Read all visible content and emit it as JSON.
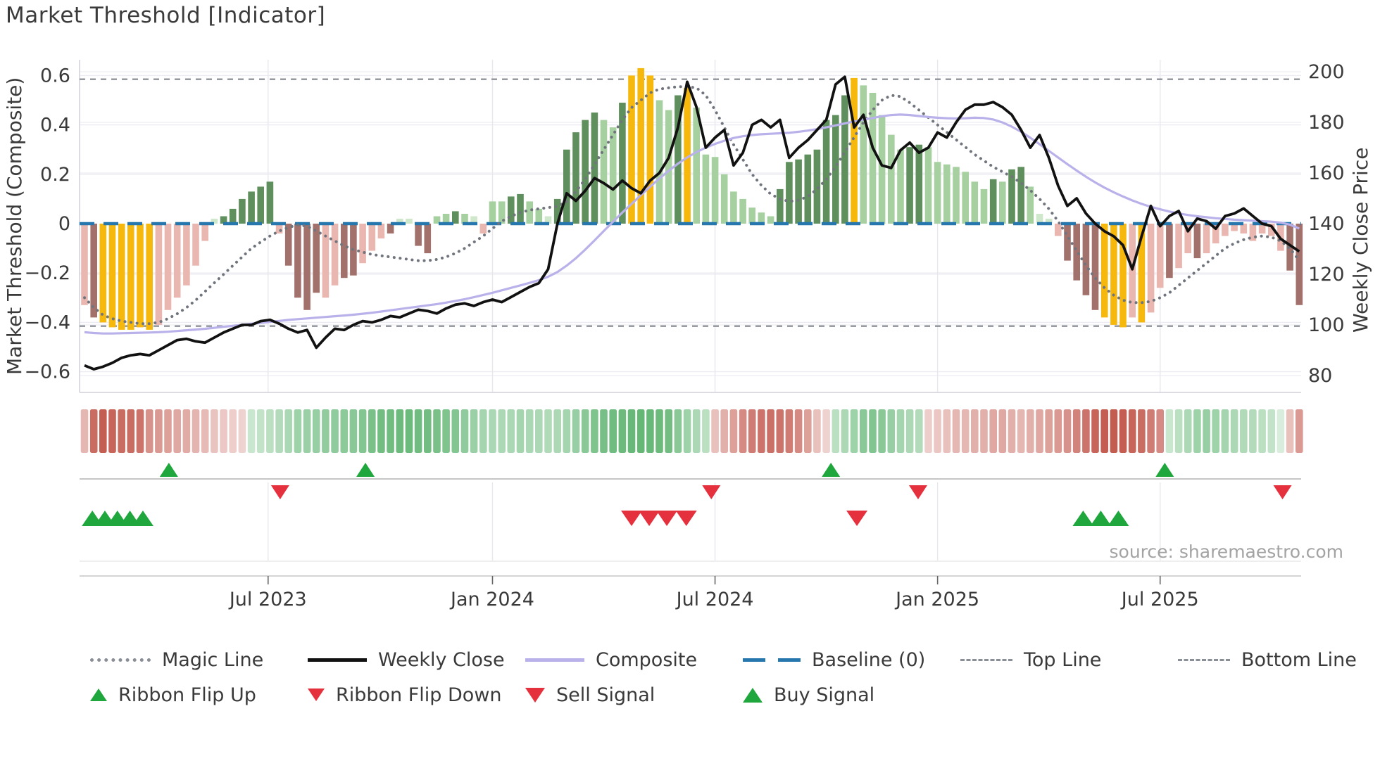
{
  "title": "Market Threshold [Indicator]",
  "source": "source: sharemaestro.com",
  "colors": {
    "bar_palette": {
      "P": "#e9b7b0",
      "D": "#a3716c",
      "Y": "#f6b80d",
      "G": "#5f8f5c",
      "L": "#a6d09f",
      "LL": "#cfe7ca"
    },
    "weekly_close": "#111111",
    "composite": "#b9b1ea",
    "magic_line": "#70747c",
    "baseline": "#2577ad",
    "top_bottom_line": "#8f939a",
    "grid": "#ebebf1",
    "ribbon_green": "#52ae65",
    "ribbon_red": "#bd4a3e",
    "signal_green": "#1fa63c",
    "signal_red": "#e5303e",
    "text": "#3a3a3a",
    "muted_text": "#a3a3a3"
  },
  "axes": {
    "left": {
      "title": "Market Threshold (Composite)",
      "ticks": [
        {
          "label": "0.6",
          "v": 0.6
        },
        {
          "label": "0.4",
          "v": 0.4
        },
        {
          "label": "0.2",
          "v": 0.2
        },
        {
          "label": "0",
          "v": 0
        },
        {
          "label": "−0.2",
          "v": -0.2
        },
        {
          "label": "−0.4",
          "v": -0.4
        },
        {
          "label": "−0.6",
          "v": -0.6
        }
      ]
    },
    "right": {
      "title": "Weekly Close Price",
      "ticks": [
        {
          "label": "200",
          "v": 200
        },
        {
          "label": "180",
          "v": 180
        },
        {
          "label": "160",
          "v": 160
        },
        {
          "label": "140",
          "v": 140
        },
        {
          "label": "120",
          "v": 120
        },
        {
          "label": "100",
          "v": 100
        },
        {
          "label": "80",
          "v": 80
        }
      ]
    },
    "x": {
      "ticks": [
        {
          "label": "Jul 2023",
          "idx": 19.8
        },
        {
          "label": "Jan 2024",
          "idx": 44.0
        },
        {
          "label": "Jul 2024",
          "idx": 68.0
        },
        {
          "label": "Jan 2025",
          "idx": 92.0
        },
        {
          "label": "Jul 2025",
          "idx": 116.0
        }
      ]
    }
  },
  "chart_data": {
    "type": "bar",
    "title": "Market Threshold [Indicator]",
    "xlabel": "",
    "ylabel_left": "Market Threshold (Composite)",
    "ylabel_right": "Weekly Close Price",
    "ylim_left": [
      -0.66,
      0.67
    ],
    "ylim_right": [
      73,
      205
    ],
    "x_tick_labels": [
      "Jul 2023",
      "Jan 2024",
      "Jul 2024",
      "Jan 2025",
      "Jul 2025"
    ],
    "n_weeks": 132,
    "bars": {
      "name": "Market Threshold (weekly)",
      "values": [
        -0.33,
        -0.38,
        -0.4,
        -0.42,
        -0.43,
        -0.43,
        -0.42,
        -0.43,
        -0.41,
        -0.35,
        -0.3,
        -0.25,
        -0.17,
        -0.07,
        0.02,
        0.03,
        0.06,
        0.1,
        0.13,
        0.15,
        0.17,
        -0.04,
        -0.17,
        -0.3,
        -0.35,
        -0.28,
        -0.3,
        -0.25,
        -0.22,
        -0.21,
        -0.16,
        -0.11,
        -0.06,
        -0.04,
        0.02,
        0.02,
        -0.09,
        -0.12,
        0.03,
        0.04,
        0.05,
        0.04,
        0.03,
        -0.04,
        0.09,
        0.09,
        0.11,
        0.12,
        0.09,
        0.06,
        0.03,
        0.1,
        0.3,
        0.37,
        0.42,
        0.45,
        0.42,
        0.39,
        0.49,
        0.6,
        0.63,
        0.6,
        0.5,
        0.46,
        0.52,
        0.55,
        0.47,
        0.28,
        0.27,
        0.2,
        0.13,
        0.1,
        0.065,
        0.045,
        0.03,
        0.14,
        0.25,
        0.26,
        0.28,
        0.3,
        0.42,
        0.44,
        0.52,
        0.59,
        0.56,
        0.53,
        0.44,
        0.36,
        0.3,
        0.31,
        0.32,
        0.31,
        0.25,
        0.24,
        0.23,
        0.21,
        0.17,
        0.14,
        0.18,
        0.17,
        0.22,
        0.23,
        0.15,
        0.04,
        0.02,
        -0.05,
        -0.15,
        -0.23,
        -0.29,
        -0.35,
        -0.38,
        -0.41,
        -0.42,
        -0.38,
        -0.4,
        -0.36,
        -0.26,
        -0.22,
        -0.18,
        -0.12,
        -0.14,
        -0.12,
        -0.08,
        -0.05,
        -0.03,
        -0.04,
        -0.07,
        -0.04,
        -0.05,
        -0.11,
        -0.19,
        -0.33
      ],
      "colors": [
        "P",
        "D",
        "Y",
        "Y",
        "Y",
        "Y",
        "Y",
        "Y",
        "P",
        "P",
        "P",
        "P",
        "P",
        "P",
        "LL",
        "G",
        "G",
        "G",
        "G",
        "G",
        "G",
        "P",
        "D",
        "D",
        "D",
        "D",
        "P",
        "P",
        "D",
        "D",
        "P",
        "P",
        "P",
        "D",
        "LL",
        "LL",
        "D",
        "D",
        "L",
        "L",
        "G",
        "L",
        "LL",
        "P",
        "L",
        "L",
        "G",
        "G",
        "L",
        "L",
        "LL",
        "G",
        "G",
        "G",
        "G",
        "G",
        "L",
        "L",
        "G",
        "Y",
        "Y",
        "Y",
        "L",
        "L",
        "G",
        "Y",
        "L",
        "L",
        "L",
        "L",
        "L",
        "L",
        "L",
        "L",
        "L",
        "G",
        "G",
        "G",
        "G",
        "G",
        "G",
        "G",
        "G",
        "Y",
        "L",
        "L",
        "L",
        "L",
        "L",
        "G",
        "G",
        "L",
        "L",
        "L",
        "L",
        "L",
        "L",
        "L",
        "G",
        "L",
        "G",
        "G",
        "L",
        "LL",
        "LL",
        "P",
        "D",
        "D",
        "D",
        "D",
        "Y",
        "Y",
        "Y",
        "P",
        "Y",
        "P",
        "P",
        "D",
        "P",
        "P",
        "D",
        "P",
        "P",
        "P",
        "P",
        "P",
        "P",
        "P",
        "P",
        "P",
        "D",
        "D"
      ]
    },
    "series": [
      {
        "name": "Weekly Close",
        "axis": "right",
        "values": [
          84,
          82.5,
          83.5,
          85,
          87,
          88,
          88.5,
          88,
          90,
          92,
          94,
          94.5,
          93.5,
          93,
          95,
          97,
          98.5,
          100,
          100,
          101.5,
          102,
          100.5,
          98.5,
          97,
          98,
          91,
          95,
          98.5,
          98,
          100,
          101.5,
          101,
          102,
          103.5,
          103,
          104.5,
          106,
          105.5,
          104.5,
          106.5,
          108,
          108.5,
          107.5,
          109,
          110,
          109,
          111,
          113,
          115,
          116.5,
          122,
          140,
          152,
          149,
          153,
          158,
          156,
          153.5,
          157,
          154,
          152,
          157,
          160,
          166,
          178,
          196,
          186,
          170,
          174,
          177,
          163,
          168,
          179,
          181,
          178,
          181,
          166,
          170,
          173,
          177,
          181,
          195,
          198,
          178,
          183,
          170,
          163,
          162,
          169,
          172,
          168,
          170,
          176,
          174,
          180,
          185,
          187,
          187,
          188,
          186,
          183,
          177,
          170,
          175,
          166,
          155,
          147,
          150,
          144,
          140,
          137,
          135,
          131.5,
          122,
          135,
          147,
          139,
          143,
          145,
          137,
          142,
          141,
          138,
          143,
          144,
          146,
          143,
          140,
          139,
          134,
          131.5,
          129
        ]
      },
      {
        "name": "Composite",
        "axis": "left",
        "values": [
          -0.44,
          -0.443,
          -0.445,
          -0.445,
          -0.444,
          -0.443,
          -0.442,
          -0.441,
          -0.44,
          -0.438,
          -0.435,
          -0.432,
          -0.429,
          -0.426,
          -0.422,
          -0.418,
          -0.414,
          -0.41,
          -0.406,
          -0.402,
          -0.398,
          -0.394,
          -0.39,
          -0.387,
          -0.384,
          -0.381,
          -0.378,
          -0.375,
          -0.372,
          -0.369,
          -0.365,
          -0.361,
          -0.356,
          -0.351,
          -0.346,
          -0.341,
          -0.336,
          -0.331,
          -0.326,
          -0.32,
          -0.313,
          -0.306,
          -0.298,
          -0.289,
          -0.28,
          -0.27,
          -0.26,
          -0.25,
          -0.24,
          -0.229,
          -0.215,
          -0.196,
          -0.17,
          -0.14,
          -0.105,
          -0.068,
          -0.03,
          0.008,
          0.045,
          0.08,
          0.115,
          0.15,
          0.183,
          0.214,
          0.243,
          0.268,
          0.29,
          0.308,
          0.323,
          0.336,
          0.347,
          0.354,
          0.359,
          0.362,
          0.364,
          0.366,
          0.368,
          0.372,
          0.377,
          0.383,
          0.39,
          0.398,
          0.406,
          0.414,
          0.421,
          0.428,
          0.435,
          0.44,
          0.442,
          0.44,
          0.436,
          0.432,
          0.429,
          0.427,
          0.426,
          0.427,
          0.429,
          0.428,
          0.422,
          0.41,
          0.393,
          0.372,
          0.348,
          0.322,
          0.295,
          0.268,
          0.241,
          0.215,
          0.19,
          0.167,
          0.146,
          0.127,
          0.11,
          0.094,
          0.08,
          0.068,
          0.058,
          0.049,
          0.041,
          0.035,
          0.03,
          0.026,
          0.022,
          0.019,
          0.016,
          0.014,
          0.012,
          0.01,
          0.008,
          0.004,
          -0.004,
          -0.02
        ]
      },
      {
        "name": "Magic Line",
        "axis": "left",
        "values": [
          -0.3,
          -0.34,
          -0.37,
          -0.385,
          -0.395,
          -0.4,
          -0.405,
          -0.405,
          -0.4,
          -0.385,
          -0.365,
          -0.34,
          -0.31,
          -0.275,
          -0.24,
          -0.205,
          -0.17,
          -0.135,
          -0.1,
          -0.075,
          -0.05,
          -0.03,
          -0.015,
          -0.005,
          -0.01,
          -0.03,
          -0.05,
          -0.07,
          -0.09,
          -0.105,
          -0.115,
          -0.125,
          -0.13,
          -0.135,
          -0.14,
          -0.145,
          -0.15,
          -0.15,
          -0.145,
          -0.135,
          -0.12,
          -0.1,
          -0.075,
          -0.05,
          -0.02,
          0.01,
          0.03,
          0.045,
          0.055,
          0.06,
          0.065,
          0.07,
          0.09,
          0.13,
          0.18,
          0.24,
          0.3,
          0.36,
          0.42,
          0.47,
          0.5,
          0.53,
          0.545,
          0.55,
          0.555,
          0.555,
          0.55,
          0.52,
          0.46,
          0.39,
          0.32,
          0.26,
          0.2,
          0.155,
          0.12,
          0.1,
          0.09,
          0.095,
          0.11,
          0.14,
          0.18,
          0.23,
          0.29,
          0.35,
          0.41,
          0.46,
          0.5,
          0.52,
          0.515,
          0.49,
          0.46,
          0.43,
          0.4,
          0.37,
          0.34,
          0.31,
          0.28,
          0.255,
          0.23,
          0.21,
          0.19,
          0.165,
          0.135,
          0.1,
          0.06,
          0.01,
          -0.05,
          -0.11,
          -0.17,
          -0.22,
          -0.26,
          -0.29,
          -0.31,
          -0.32,
          -0.32,
          -0.315,
          -0.3,
          -0.28,
          -0.25,
          -0.22,
          -0.19,
          -0.16,
          -0.13,
          -0.1,
          -0.08,
          -0.065,
          -0.055,
          -0.05,
          -0.055,
          -0.07,
          -0.1,
          -0.15
        ]
      }
    ],
    "reference_lines": [
      {
        "name": "Baseline (0)",
        "value": 0,
        "style": "dashed-blue"
      },
      {
        "name": "Top Line",
        "value": 0.585,
        "style": "dashed-gray"
      },
      {
        "name": "Bottom Line",
        "value": -0.415,
        "style": "dashed-gray"
      }
    ],
    "ribbon": {
      "name": "trend-ribbon",
      "values": [
        -0.3,
        -0.8,
        -0.9,
        -0.85,
        -0.8,
        -0.8,
        -0.75,
        -0.55,
        -0.5,
        -0.45,
        -0.4,
        -0.38,
        -0.32,
        -0.28,
        -0.22,
        -0.18,
        -0.15,
        -0.12,
        0.2,
        0.25,
        0.3,
        0.35,
        0.42,
        0.5,
        0.52,
        0.55,
        0.58,
        0.6,
        0.62,
        0.65,
        0.68,
        0.75,
        0.8,
        0.82,
        0.85,
        0.85,
        0.82,
        0.8,
        0.75,
        0.72,
        0.68,
        0.6,
        0.52,
        0.45,
        0.42,
        0.4,
        0.42,
        0.45,
        0.42,
        0.4,
        0.38,
        0.4,
        0.45,
        0.55,
        0.65,
        0.72,
        0.78,
        0.82,
        0.85,
        0.88,
        0.9,
        0.88,
        0.85,
        0.8,
        0.65,
        0.5,
        0.4,
        0.3,
        -0.25,
        -0.35,
        -0.45,
        -0.6,
        -0.7,
        -0.75,
        -0.78,
        -0.75,
        -0.7,
        -0.6,
        -0.45,
        -0.25,
        -0.12,
        0.3,
        0.4,
        0.5,
        0.65,
        0.7,
        0.65,
        0.55,
        0.45,
        0.4,
        0.35,
        -0.15,
        -0.2,
        -0.25,
        -0.3,
        -0.3,
        -0.35,
        -0.35,
        -0.4,
        -0.4,
        -0.35,
        -0.3,
        -0.35,
        -0.4,
        -0.45,
        -0.5,
        -0.55,
        -0.65,
        -0.75,
        -0.85,
        -0.9,
        -0.92,
        -0.9,
        -0.85,
        -0.8,
        -0.7,
        -0.6,
        0.2,
        0.3,
        0.4,
        0.5,
        0.55,
        0.5,
        0.45,
        0.4,
        0.38,
        0.35,
        0.3,
        0.25,
        0.08,
        -0.25,
        -0.5
      ]
    },
    "signals": {
      "ribbon_flip_up": {
        "marker": "triangle-up-green",
        "idx": [
          9.1,
          30.3,
          80.5,
          116.5
        ]
      },
      "ribbon_flip_down": {
        "marker": "triangle-down-red",
        "idx": [
          21.1,
          67.6,
          89.9,
          129.2
        ]
      },
      "buy_signal": {
        "marker": "triangle-up-green",
        "idx": [
          0.85,
          2.2,
          3.55,
          4.9,
          6.3,
          107.7,
          109.6,
          111.5
        ]
      },
      "sell_signal": {
        "marker": "triangle-down-red",
        "idx": [
          59.0,
          60.9,
          62.8,
          64.9,
          83.3
        ]
      }
    }
  },
  "legend": {
    "rows": [
      [
        {
          "label": "Magic Line"
        },
        {
          "label": "Weekly Close"
        },
        {
          "label": "Composite"
        },
        {
          "label": "Baseline (0)"
        },
        {
          "label": "Top Line"
        },
        {
          "label": "Bottom Line"
        }
      ],
      [
        {
          "label": "Ribbon Flip Up"
        },
        {
          "label": "Ribbon Flip Down"
        },
        {
          "label": "Sell Signal"
        },
        {
          "label": "Buy Signal"
        }
      ]
    ]
  }
}
